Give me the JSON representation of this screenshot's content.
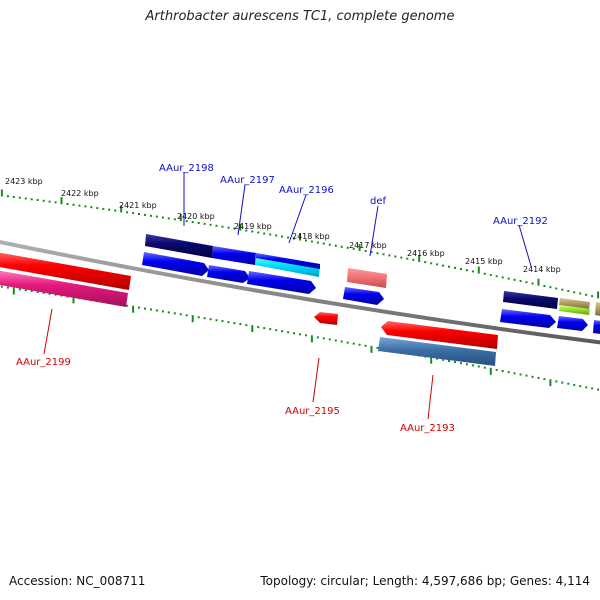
{
  "title": "Arthrobacter aurescens TC1, complete genome",
  "footer": {
    "accession": "Accession: NC_008711",
    "summary": "Topology: circular; Length: 4,597,686 bp; Genes: 4,114"
  },
  "colors": {
    "backbone": "#8a8a8a",
    "ticks": "#1a8a1a",
    "forward_label": "#1010c8",
    "reverse_label": "#d40000"
  },
  "scale_labels": [
    "2423 kbp",
    "2422 kbp",
    "2421 kbp",
    "2420 kbp",
    "2419 kbp",
    "2418 kbp",
    "2417 kbp",
    "2416 kbp",
    "2415 kbp",
    "2414 kbp"
  ],
  "genes": [
    {
      "id": "AAur_2199",
      "strand": "reverse",
      "labeled": true
    },
    {
      "id": "AAur_2198",
      "strand": "forward",
      "labeled": true
    },
    {
      "id": "AAur_2197",
      "strand": "forward",
      "labeled": true
    },
    {
      "id": "AAur_2196",
      "strand": "forward",
      "labeled": true
    },
    {
      "id": "AAur_2195",
      "strand": "reverse",
      "labeled": true
    },
    {
      "id": "def",
      "strand": "forward",
      "labeled": true
    },
    {
      "id": "AAur_2193",
      "strand": "reverse",
      "labeled": true
    },
    {
      "id": "AAur_2192",
      "strand": "forward",
      "labeled": true
    }
  ]
}
